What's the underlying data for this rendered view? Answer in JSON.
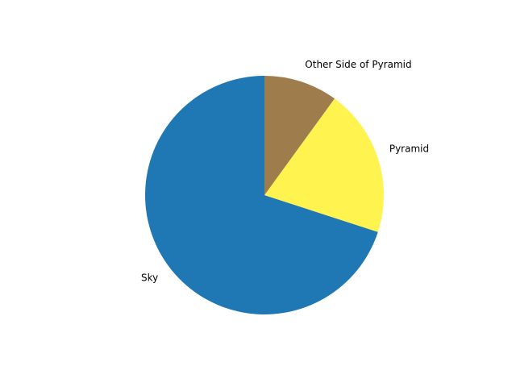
{
  "chart_data": {
    "type": "pie",
    "title": "",
    "start_angle_deg": 90,
    "direction": "counterclockwise",
    "slices": [
      {
        "label": "Sky",
        "value": 0.7,
        "color": "#1f77b4"
      },
      {
        "label": "Pyramid",
        "value": 0.2,
        "color": "#fff44f"
      },
      {
        "label": "Other Side of Pyramid",
        "value": 0.1,
        "color": "#9e7c4c"
      }
    ]
  }
}
